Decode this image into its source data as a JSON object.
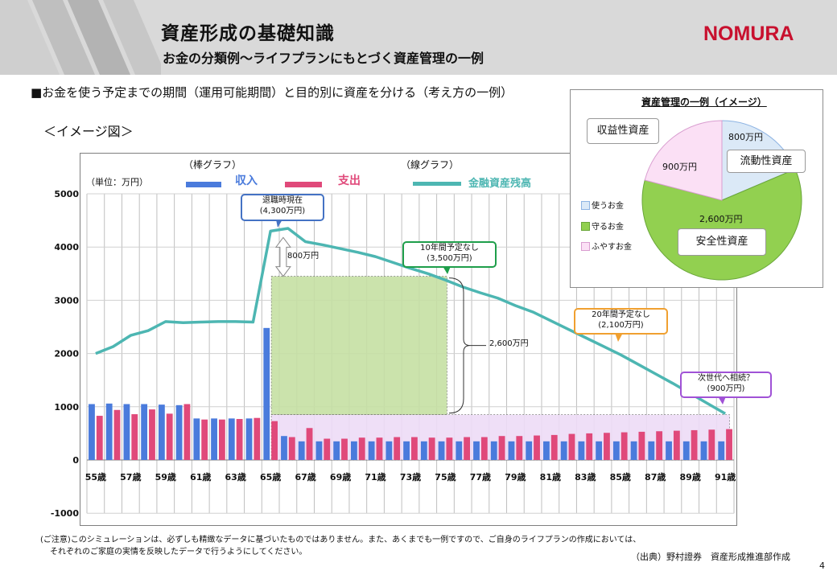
{
  "header": {
    "title": "資産形成の基礎知識",
    "subtitle": "お金の分類例～ライフプランにもとづく資産管理の一例",
    "logo_text": "NOMURA",
    "logo_color": "#c8102e"
  },
  "lead_text": "■お金を使う予定までの期間（運用可能期間）と目的別に資産を分ける（考え方の一例）",
  "image_label": "＜イメージ図＞",
  "legend": {
    "bar_group_label": "（棒グラフ）",
    "line_group_label": "（線グラフ）",
    "unit": "（単位：万円）",
    "income": "収入",
    "expense": "支出",
    "assets": "金融資産残高"
  },
  "annotations": {
    "retirement": "退職時現在\n(4,300万円)",
    "ten_years": "10年間予定なし\n(3,500万円)",
    "twenty_years": "20年間予定なし\n(2,100万円)",
    "next_gen": "次世代へ相続？\n(900万円)",
    "gap_800": "800万円",
    "safe_2600": "2,600万円"
  },
  "inset": {
    "title": "資産管理の一例（イメージ）",
    "legend": [
      "使うお金",
      "守るお金",
      "ふやすお金"
    ],
    "labels": {
      "income_assets": "収益性資産",
      "liquid_assets": "流動性資産",
      "safe_assets": "安全性資産"
    },
    "values": {
      "liquid": "800万円",
      "income": "900万円",
      "safe": "2,600万円"
    },
    "colors": {
      "use": "#dbe9f7",
      "protect": "#92d050",
      "grow": "#fbe0f5"
    },
    "slice_values": [
      800,
      900,
      2600
    ]
  },
  "footer": {
    "note_line1": "(ご注意)このシミュレーションは、必ずしも精緻なデータに基づいたものではありません。また、あくまでも一例ですので、ご自身のライフプランの作成においては、",
    "note_line2": "それぞれのご家庭の実情を反映したデータで行うようにしてください。",
    "source": "（出典）野村證券　資産形成推進部作成",
    "page": "4"
  },
  "chart_data": {
    "type": "bar",
    "x": [
      55,
      56,
      57,
      58,
      59,
      60,
      61,
      62,
      63,
      64,
      65,
      66,
      67,
      68,
      69,
      70,
      71,
      72,
      73,
      74,
      75,
      76,
      77,
      78,
      79,
      80,
      81,
      82,
      83,
      84,
      85,
      86,
      87,
      88,
      89,
      90,
      91
    ],
    "x_tick_labels": [
      "55歳",
      "57歳",
      "59歳",
      "61歳",
      "63歳",
      "65歳",
      "67歳",
      "69歳",
      "71歳",
      "73歳",
      "75歳",
      "77歳",
      "79歳",
      "81歳",
      "83歳",
      "85歳",
      "87歳",
      "89歳",
      "91歳"
    ],
    "ylim": [
      -1000,
      5000
    ],
    "y_ticks": [
      -1000,
      0,
      1000,
      2000,
      3000,
      4000,
      5000
    ],
    "grid": true,
    "series": [
      {
        "name": "収入",
        "kind": "bar",
        "color": "#4a7bdc",
        "values": [
          1050,
          1060,
          1050,
          1050,
          1040,
          1030,
          780,
          780,
          780,
          780,
          2480,
          450,
          350,
          350,
          350,
          350,
          350,
          350,
          350,
          350,
          350,
          350,
          350,
          350,
          350,
          350,
          350,
          350,
          350,
          350,
          350,
          350,
          350,
          350,
          350,
          350,
          350
        ]
      },
      {
        "name": "支出",
        "kind": "bar",
        "color": "#e0497a",
        "values": [
          830,
          940,
          860,
          950,
          870,
          1050,
          760,
          760,
          770,
          790,
          730,
          430,
          600,
          400,
          400,
          420,
          420,
          430,
          430,
          420,
          420,
          430,
          430,
          450,
          450,
          460,
          470,
          490,
          500,
          510,
          520,
          530,
          540,
          550,
          560,
          570,
          580
        ]
      },
      {
        "name": "金融資産残高",
        "kind": "line",
        "color": "#4db6b2",
        "values": [
          2000,
          2130,
          2340,
          2430,
          2600,
          2580,
          2590,
          2600,
          2600,
          2590,
          4300,
          4350,
          4100,
          4040,
          3970,
          3900,
          3820,
          3710,
          3600,
          3500,
          3380,
          3250,
          3140,
          3040,
          2900,
          2780,
          2620,
          2460,
          2300,
          2140,
          1980,
          1800,
          1620,
          1440,
          1250,
          1060,
          870
        ]
      }
    ],
    "zones": [
      {
        "label": "2,600万円",
        "from_age": 65,
        "to_age": 75,
        "y_from": 850,
        "y_to": 3450,
        "color": "#c6e0a4"
      },
      {
        "label": "900万円",
        "from_age": 65,
        "to_age": 91,
        "y_from": 0,
        "y_to": 850,
        "color": "#eedcf7"
      }
    ]
  }
}
